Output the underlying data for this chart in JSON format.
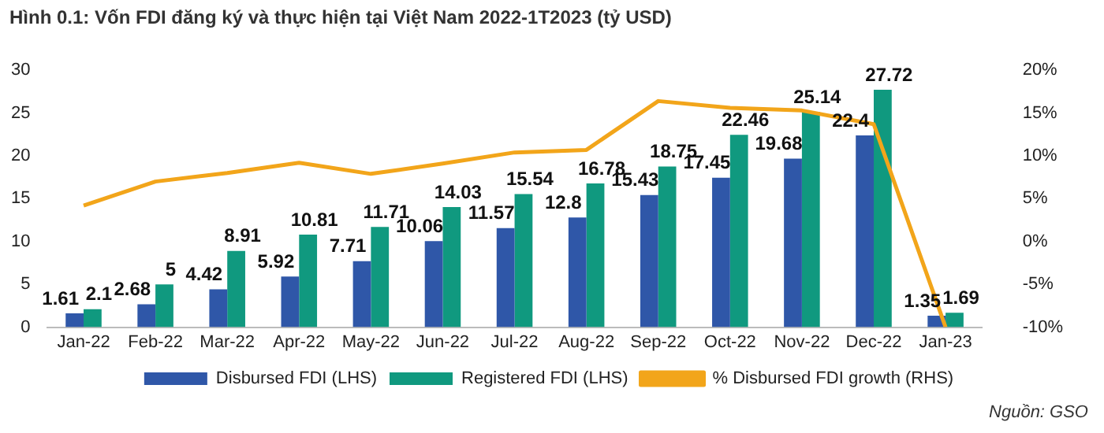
{
  "chart_data": {
    "type": "bar",
    "title": "Hình 0.1: Vốn FDI đăng ký và thực hiện tại Việt Nam 2022-1T2023 (tỷ USD)",
    "categories": [
      "Jan-22",
      "Feb-22",
      "Mar-22",
      "Apr-22",
      "May-22",
      "Jun-22",
      "Jul-22",
      "Aug-22",
      "Sep-22",
      "Oct-22",
      "Nov-22",
      "Dec-22",
      "Jan-23"
    ],
    "series": [
      {
        "name": "Disbursed FDI (LHS)",
        "color": "#2f57a8",
        "values": [
          1.61,
          2.68,
          4.42,
          5.92,
          7.71,
          10.06,
          11.57,
          12.8,
          15.43,
          17.45,
          19.68,
          22.4,
          1.35
        ],
        "value_labels": [
          "1.61",
          "2.68",
          "4.42",
          "5.92",
          "7.71",
          "10.06",
          "11.57",
          "12.8",
          "15.43",
          "17.45",
          "19.68",
          "22.4",
          "1.35"
        ]
      },
      {
        "name": "Registered FDI (LHS)",
        "color": "#10997f",
        "values": [
          2.1,
          5,
          8.91,
          10.81,
          11.71,
          14.03,
          15.54,
          16.78,
          18.75,
          22.46,
          25.14,
          27.72,
          1.69
        ],
        "value_labels": [
          "2.1",
          "5",
          "8.91",
          "10.81",
          "11.71",
          "14.03",
          "15.54",
          "16.78",
          "18.75",
          "22.46",
          "25.14",
          "27.72",
          "1.69"
        ]
      },
      {
        "name": "% Disbursed FDI growth (RHS)",
        "type": "line",
        "axis": "y2",
        "color": "#f2a51a",
        "values": [
          4.2,
          7.0,
          8.0,
          9.2,
          7.9,
          9.1,
          10.4,
          10.7,
          16.4,
          15.6,
          15.3,
          13.7,
          -10
        ]
      }
    ],
    "ylim": [
      0,
      30
    ],
    "yticks": [
      0,
      5,
      10,
      15,
      20,
      25,
      30
    ],
    "y2lim": [
      -10,
      20
    ],
    "y2ticks": [
      {
        "value": -10,
        "label": "-10%"
      },
      {
        "value": -5,
        "label": "-5%"
      },
      {
        "value": 0,
        "label": "0%"
      },
      {
        "value": 5,
        "label": "5%"
      },
      {
        "value": 10,
        "label": "10%"
      },
      {
        "value": 15,
        "label": "15%"
      },
      {
        "value": 20,
        "label": "20%"
      }
    ],
    "grid": false,
    "legend": "bottom",
    "marker": "none",
    "annotations": [
      "Nguồn: GSO"
    ]
  }
}
